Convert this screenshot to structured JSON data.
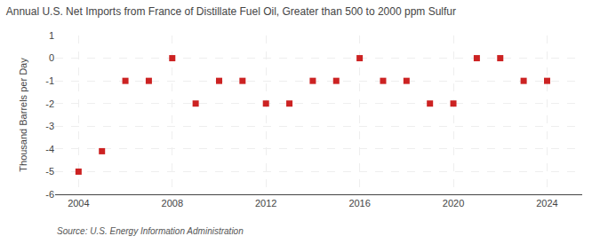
{
  "chart_data": {
    "type": "scatter",
    "title": "Annual U.S. Net Imports from France of Distillate Fuel Oil, Greater than 500 to 2000 ppm Sulfur",
    "ylabel": "Thousand Barrels per Day",
    "annotations": [
      "Source: U.S. Energy Information Administration"
    ],
    "x": [
      2004,
      2005,
      2006,
      2007,
      2008,
      2009,
      2010,
      2011,
      2012,
      2013,
      2014,
      2015,
      2016,
      2017,
      2018,
      2019,
      2020,
      2021,
      2022,
      2023,
      2024
    ],
    "values": [
      -5.0,
      -4.1,
      -1.0,
      -1.0,
      0.0,
      -2.0,
      -1.0,
      -1.0,
      -2.0,
      -2.0,
      -1.0,
      -1.0,
      0.0,
      -1.0,
      -1.0,
      -2.0,
      -2.0,
      0.0,
      0.0,
      -1.0,
      -1.0
    ],
    "xlim": [
      2003.0,
      2025.5
    ],
    "ylim": [
      -6,
      1
    ],
    "xticks": [
      2004,
      2008,
      2012,
      2016,
      2020,
      2024
    ],
    "yticks": [
      -6,
      -5,
      -4,
      -3,
      -2,
      -1,
      0,
      1
    ],
    "color": "#cc2222",
    "marker": "square",
    "grid": true
  }
}
